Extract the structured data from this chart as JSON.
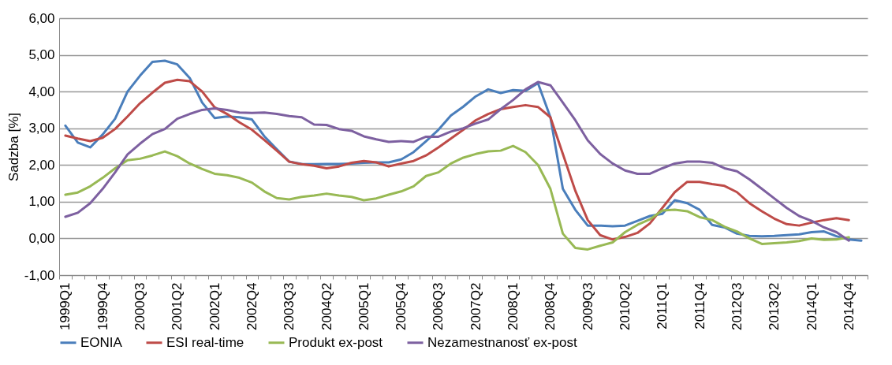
{
  "chart_data": {
    "type": "line",
    "ylabel": "Sadzba [%]",
    "categories": [
      "1999Q1",
      null,
      null,
      "1999Q4",
      null,
      null,
      "2000Q3",
      null,
      null,
      "2001Q2",
      null,
      null,
      "2002Q1",
      null,
      null,
      "2002Q4",
      null,
      null,
      "2003Q3",
      null,
      null,
      "2004Q2",
      null,
      null,
      "2005Q1",
      null,
      null,
      "2005Q4",
      null,
      null,
      "2006Q3",
      null,
      null,
      "2007Q2",
      null,
      null,
      "2008Q1",
      null,
      null,
      "2008Q4",
      null,
      null,
      "2009Q3",
      null,
      null,
      "2010Q2",
      null,
      null,
      "2011Q1",
      null,
      null,
      "2011Q4",
      null,
      null,
      "2012Q3",
      null,
      null,
      "2013Q2",
      null,
      null,
      "2014Q1",
      null,
      null,
      "2014Q4",
      null
    ],
    "series": [
      {
        "name": "EONIA",
        "color": "#4a7ebb",
        "values": [
          3.07,
          2.61,
          2.48,
          2.83,
          3.26,
          4.0,
          4.43,
          4.81,
          4.84,
          4.74,
          4.37,
          3.7,
          3.28,
          3.32,
          3.3,
          3.24,
          2.78,
          2.43,
          2.09,
          2.03,
          2.02,
          2.03,
          2.03,
          2.04,
          2.06,
          2.07,
          2.07,
          2.15,
          2.35,
          2.65,
          2.96,
          3.35,
          3.59,
          3.87,
          4.06,
          3.96,
          4.04,
          4.02,
          4.23,
          3.3,
          1.35,
          0.78,
          0.35,
          0.35,
          0.33,
          0.35,
          0.48,
          0.61,
          0.67,
          1.04,
          0.96,
          0.78,
          0.37,
          0.3,
          0.13,
          0.07,
          0.06,
          0.07,
          0.09,
          0.11,
          0.17,
          0.19,
          0.06,
          -0.03,
          -0.06
        ]
      },
      {
        "name": "ESI real-time",
        "color": "#be4b48",
        "values": [
          2.8,
          2.72,
          2.65,
          2.74,
          2.98,
          3.32,
          3.68,
          3.97,
          4.24,
          4.32,
          4.28,
          4.0,
          3.57,
          3.39,
          3.16,
          2.96,
          2.68,
          2.39,
          2.09,
          2.02,
          1.98,
          1.91,
          1.96,
          2.06,
          2.11,
          2.07,
          1.96,
          2.04,
          2.11,
          2.26,
          2.48,
          2.72,
          2.96,
          3.22,
          3.39,
          3.52,
          3.58,
          3.63,
          3.58,
          3.3,
          2.3,
          1.3,
          0.5,
          0.09,
          -0.03,
          0.04,
          0.15,
          0.41,
          0.83,
          1.26,
          1.54,
          1.54,
          1.48,
          1.43,
          1.26,
          0.96,
          0.74,
          0.54,
          0.39,
          0.35,
          0.43,
          0.5,
          0.55,
          0.5,
          null
        ]
      },
      {
        "name": "Produkt ex-post",
        "color": "#98b954",
        "values": [
          1.19,
          1.25,
          1.42,
          1.65,
          1.91,
          2.13,
          2.17,
          2.26,
          2.37,
          2.24,
          2.04,
          1.89,
          1.76,
          1.72,
          1.65,
          1.52,
          1.28,
          1.1,
          1.06,
          1.13,
          1.17,
          1.22,
          1.17,
          1.13,
          1.04,
          1.09,
          1.19,
          1.28,
          1.42,
          1.7,
          1.8,
          2.04,
          2.2,
          2.3,
          2.37,
          2.39,
          2.52,
          2.35,
          2.0,
          1.35,
          0.13,
          -0.26,
          -0.3,
          -0.2,
          -0.11,
          0.17,
          0.37,
          0.52,
          0.76,
          0.78,
          0.74,
          0.58,
          0.5,
          0.32,
          0.19,
          0.0,
          -0.15,
          -0.13,
          -0.11,
          -0.07,
          0.0,
          -0.04,
          -0.03,
          0.03,
          null
        ]
      },
      {
        "name": "Nezamestnanosť ex-post",
        "color": "#7d60a0",
        "values": [
          0.59,
          0.7,
          0.96,
          1.35,
          1.8,
          2.29,
          2.58,
          2.84,
          2.98,
          3.26,
          3.39,
          3.5,
          3.54,
          3.5,
          3.43,
          3.42,
          3.43,
          3.39,
          3.33,
          3.3,
          3.1,
          3.09,
          2.98,
          2.93,
          2.78,
          2.7,
          2.63,
          2.65,
          2.63,
          2.77,
          2.77,
          2.91,
          3.0,
          3.13,
          3.24,
          3.52,
          3.77,
          4.06,
          4.26,
          4.17,
          3.7,
          3.22,
          2.67,
          2.3,
          2.04,
          1.85,
          1.76,
          1.76,
          1.91,
          2.04,
          2.09,
          2.09,
          2.06,
          1.91,
          1.83,
          1.61,
          1.35,
          1.09,
          0.83,
          0.61,
          0.48,
          0.3,
          0.17,
          -0.06,
          null
        ]
      }
    ],
    "ylim": [
      -1,
      6
    ],
    "yticks": [
      {
        "value": -1,
        "label": "-1,00"
      },
      {
        "value": 0,
        "label": "0,00"
      },
      {
        "value": 1,
        "label": "1,00"
      },
      {
        "value": 2,
        "label": "2,00"
      },
      {
        "value": 3,
        "label": "3,00"
      },
      {
        "value": 4,
        "label": "4,00"
      },
      {
        "value": 5,
        "label": "5,00"
      },
      {
        "value": 6,
        "label": "6,00"
      }
    ],
    "grid": "y",
    "legend": "bottom",
    "marker": "none",
    "line_style": "solid"
  }
}
